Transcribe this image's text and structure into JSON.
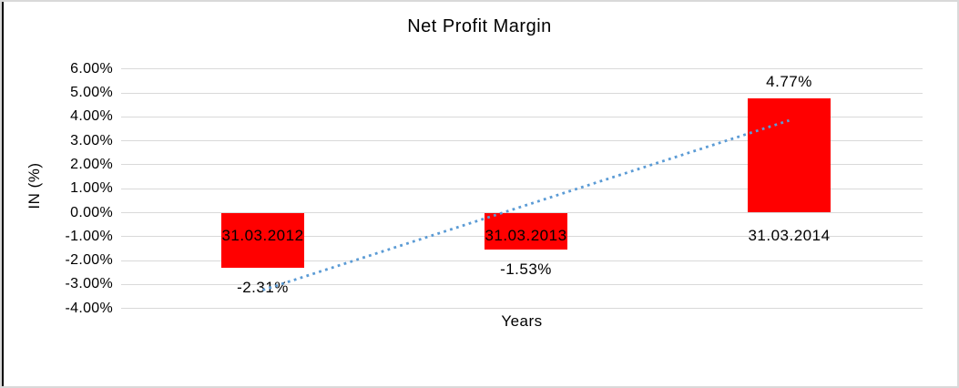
{
  "chart_data": {
    "type": "bar",
    "title": "Net Profit Margin",
    "xlabel": "Years",
    "ylabel": "IN (%)",
    "categories": [
      "31.03.2012",
      "31.03.2013",
      "31.03.2014"
    ],
    "values": [
      -2.31,
      -1.53,
      4.77
    ],
    "data_labels": [
      "-2.31%",
      "-1.53%",
      "4.77%"
    ],
    "ylim": [
      -4,
      6
    ],
    "grid": true,
    "legend": "none",
    "bar_color": "#ff0000",
    "gridline_color": "#d9d9d9",
    "text_color": "#000000",
    "y_ticks": [
      {
        "value": 6,
        "label": "6.00%"
      },
      {
        "value": 5,
        "label": "5.00%"
      },
      {
        "value": 4,
        "label": "4.00%"
      },
      {
        "value": 3,
        "label": "3.00%"
      },
      {
        "value": 2,
        "label": "2.00%"
      },
      {
        "value": 1,
        "label": "1.00%"
      },
      {
        "value": 0,
        "label": "0.00%"
      },
      {
        "value": -1,
        "label": "-1.00%"
      },
      {
        "value": -2,
        "label": "-2.00%"
      },
      {
        "value": -3,
        "label": "-3.00%"
      },
      {
        "value": -4,
        "label": "-4.00%"
      }
    ],
    "trendline": {
      "type": "linear",
      "line_style": "dotted",
      "color": "#5b9bd5",
      "start_value": -3.23,
      "end_value": 3.85
    }
  }
}
